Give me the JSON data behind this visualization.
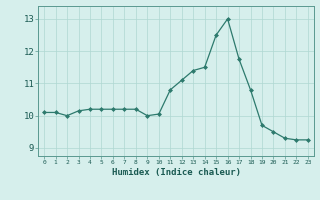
{
  "x": [
    0,
    1,
    2,
    3,
    4,
    5,
    6,
    7,
    8,
    9,
    10,
    11,
    12,
    13,
    14,
    15,
    16,
    17,
    18,
    19,
    20,
    21,
    22,
    23
  ],
  "y": [
    10.1,
    10.1,
    10.0,
    10.15,
    10.2,
    10.2,
    10.2,
    10.2,
    10.2,
    10.0,
    10.05,
    10.8,
    11.1,
    11.4,
    11.5,
    12.5,
    13.0,
    11.75,
    10.8,
    9.7,
    9.5,
    9.3,
    9.25,
    9.25
  ],
  "xlabel": "Humidex (Indice chaleur)",
  "ylim": [
    8.75,
    13.4
  ],
  "xlim": [
    -0.5,
    23.5
  ],
  "yticks": [
    9,
    10,
    11,
    12,
    13
  ],
  "xticks": [
    0,
    1,
    2,
    3,
    4,
    5,
    6,
    7,
    8,
    9,
    10,
    11,
    12,
    13,
    14,
    15,
    16,
    17,
    18,
    19,
    20,
    21,
    22,
    23
  ],
  "line_color": "#2d7a6d",
  "marker_color": "#2d7a6d",
  "bg_color": "#d6efec",
  "grid_color": "#afd8d2",
  "tick_label_color": "#1a5a52",
  "axis_label_color": "#1a5a52",
  "spine_color": "#5a9990"
}
